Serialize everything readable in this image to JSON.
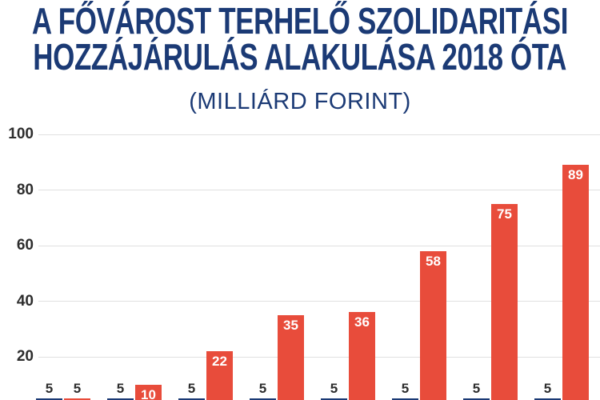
{
  "header": {
    "title_line1": "A FŐVÁROST TERHELŐ SZOLIDARITÁSI",
    "title_line2": "HOZZÁJÁRULÁS ALAKULÁSA 2018 ÓTA",
    "subtitle": "(MILLIÁRD FORINT)"
  },
  "colors": {
    "title_navy": "#1B3A75",
    "bar_red": "#E84C3B",
    "bar_blue": "#1B3A75",
    "gridline": "#E0E0E0",
    "tick_text": "#2D2D2D",
    "background": "#FFFFFF"
  },
  "chart_data": {
    "type": "bar",
    "title": "A fővárost terhelő szolidaritási hozzájárulás alakulása 2018 óta",
    "subtitle": "(milliárd forint)",
    "ylabel": "",
    "xlabel": "",
    "ylim": [
      0,
      100
    ],
    "y_ticks": [
      20,
      40,
      60,
      80,
      100
    ],
    "grid": true,
    "legend": "none",
    "x_tick_labels_visible": false,
    "groups": 8,
    "series": [
      {
        "name": "series-blue",
        "color": "#1B3A75",
        "values": [
          5,
          5,
          5,
          5,
          5,
          5,
          5,
          5
        ],
        "labels": [
          "5",
          "5",
          "5",
          "5",
          "5",
          "5",
          "5",
          "5"
        ]
      },
      {
        "name": "series-red",
        "color": "#E84C3B",
        "values": [
          5,
          10,
          22,
          35,
          36,
          58,
          75,
          89
        ],
        "labels": [
          "5",
          "10",
          "22",
          "35",
          "36",
          "58",
          "75",
          "89"
        ]
      }
    ]
  }
}
